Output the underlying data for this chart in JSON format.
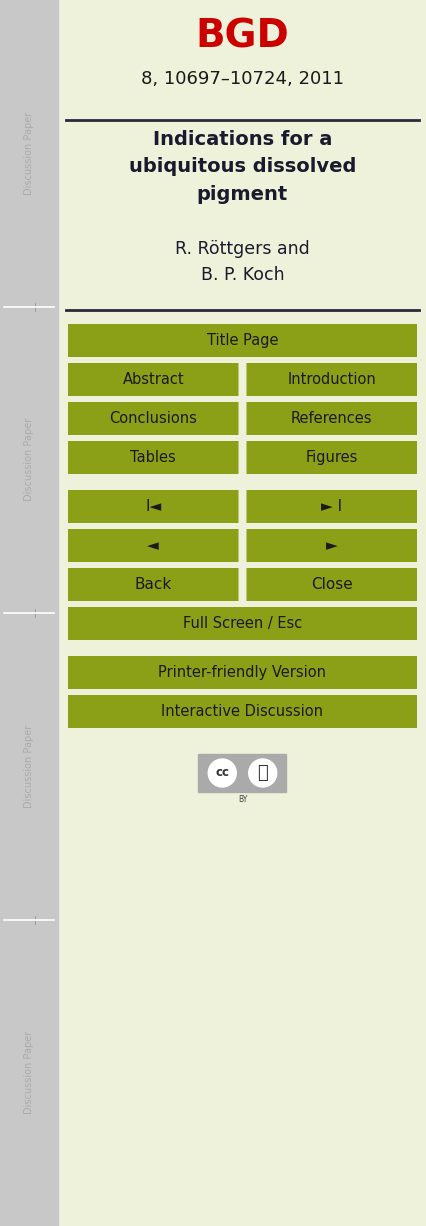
{
  "bg_color": "#eef2da",
  "sidebar_color": "#c8c8c8",
  "sidebar_text_color": "#aaaaaa",
  "title_text": "BGD",
  "title_text_color": "#cc0000",
  "journal_info": "8, 10697–10724, 2011",
  "paper_title": "Indications for a\nubiquitous dissolved\npigment",
  "paper_title_color": "#1a1a2e",
  "authors": "R. Röttgers and\nB. P. Koch",
  "authors_color": "#1a1a2e",
  "button_color": "#8ba016",
  "button_text_color": "#1a1a1a",
  "buttons_double": [
    [
      "Abstract",
      "Introduction"
    ],
    [
      "Conclusions",
      "References"
    ],
    [
      "Tables",
      "Figures"
    ],
    [
      "I◄",
      "► I"
    ],
    [
      "◄",
      "►"
    ],
    [
      "Back",
      "Close"
    ]
  ],
  "line_color": "#2a2a3a",
  "figsize": [
    4.27,
    12.26
  ],
  "dpi": 100
}
